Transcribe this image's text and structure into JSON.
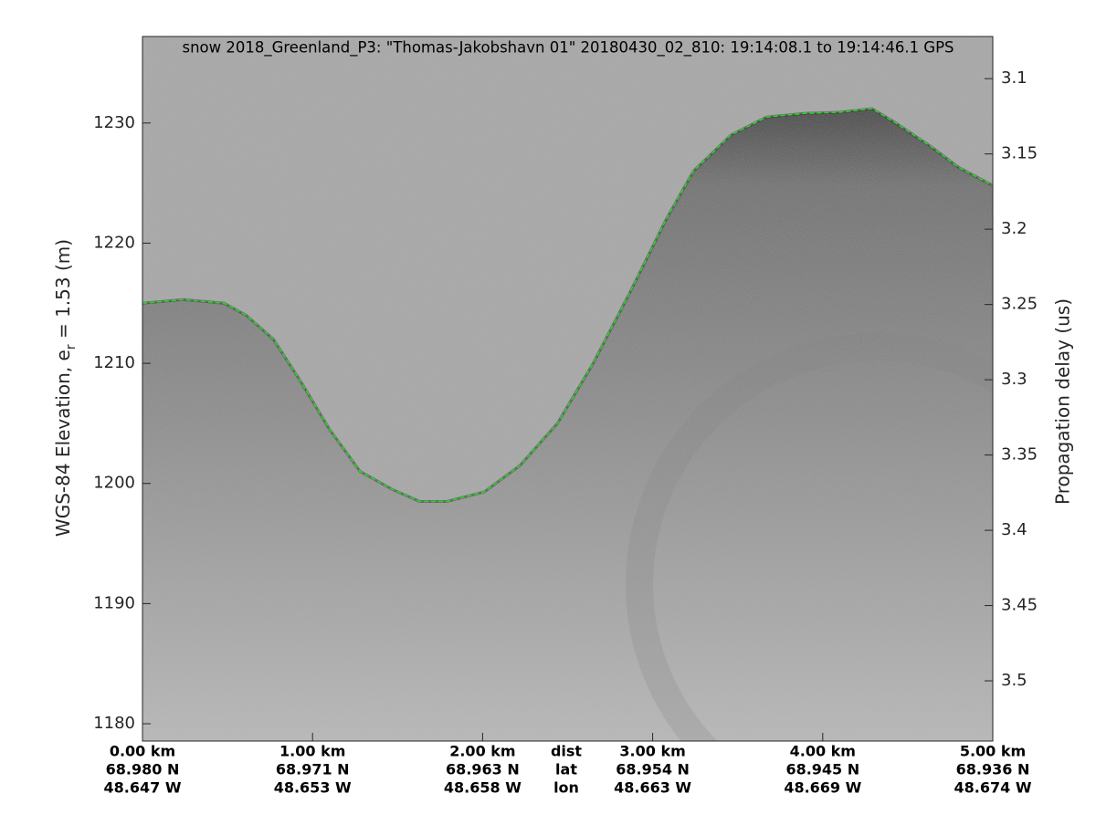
{
  "chart_data": {
    "type": "line",
    "title": "snow 2018_Greenland_P3: \"Thomas-Jakobshavn 01\"  20180430_02_810: 19:14:08.1 to 19:14:46.1 GPS",
    "ylabel_parts": [
      "WGS-84 Elevation, e",
      "r",
      " = 1.53 (m)"
    ],
    "y2label": "Propagation delay (us)",
    "xlim": [
      0,
      5
    ],
    "xticks": [
      {
        "value": 0,
        "label": "0.00 km"
      },
      {
        "value": 1,
        "label": "1.00 km"
      },
      {
        "value": 2,
        "label": "2.00 km"
      },
      {
        "value": 3,
        "label": "3.00 km"
      },
      {
        "value": 4,
        "label": "4.00 km"
      },
      {
        "value": 5,
        "label": "5.00 km"
      }
    ],
    "lat_labels": [
      "68.980 N",
      "68.971 N",
      "68.963 N",
      "68.954 N",
      "68.945 N",
      "68.936 N"
    ],
    "lon_labels": [
      "48.647 W",
      "48.653 W",
      "48.658 W",
      "48.663 W",
      "48.669 W",
      "48.674 W"
    ],
    "row_labels": [
      "dist",
      "lat",
      "lon"
    ],
    "ylim": [
      1178.56,
      1237.2
    ],
    "yticks": [
      1180,
      1190,
      1200,
      1210,
      1220,
      1230
    ],
    "y2lim": [
      3.54,
      3.072
    ],
    "y2ticks": [
      3.1,
      3.15,
      3.2,
      3.25,
      3.3,
      3.35,
      3.4,
      3.45,
      3.5
    ],
    "series": [
      {
        "name": "surface",
        "color": "#22dd22",
        "x": [
          0,
          0.24,
          0.48,
          0.61,
          0.77,
          0.93,
          1.1,
          1.28,
          1.47,
          1.63,
          1.79,
          2.01,
          2.22,
          2.44,
          2.65,
          2.87,
          3.08,
          3.24,
          3.46,
          3.67,
          3.89,
          4.1,
          4.29,
          4.43,
          4.64,
          4.8,
          5.0
        ],
        "values": [
          1215.0,
          1215.3,
          1215.0,
          1214.0,
          1212.0,
          1208.5,
          1204.5,
          1201.0,
          1199.5,
          1198.5,
          1198.5,
          1199.3,
          1201.5,
          1205.0,
          1210.0,
          1216.0,
          1222.0,
          1226.0,
          1229.0,
          1230.5,
          1230.8,
          1230.9,
          1231.2,
          1230.0,
          1228.0,
          1226.3,
          1224.8
        ]
      }
    ]
  }
}
